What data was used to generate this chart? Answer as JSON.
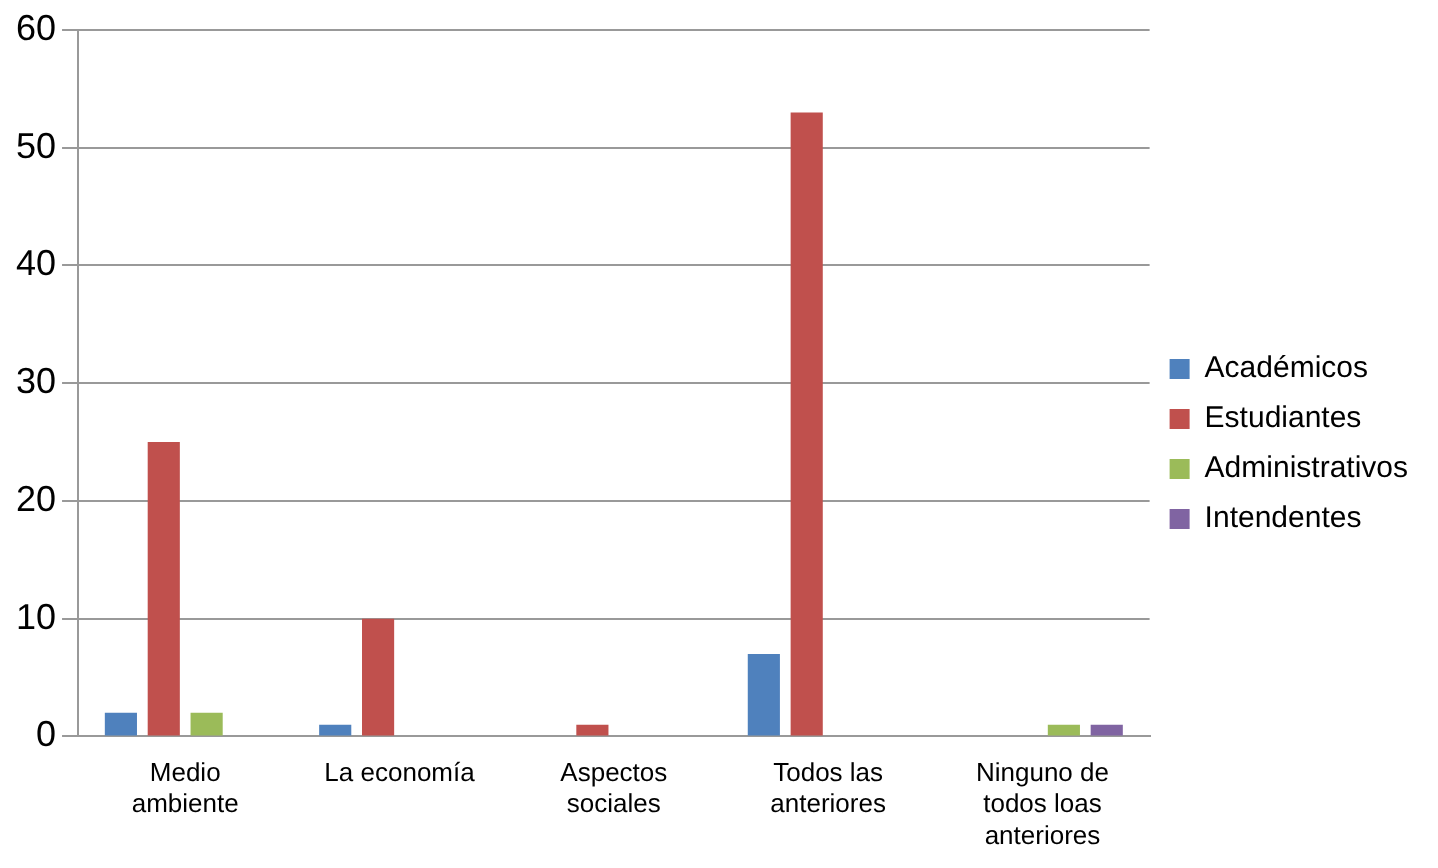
{
  "chart_data": {
    "type": "bar",
    "categories": [
      "Medio ambiente",
      "La economía",
      "Aspectos sociales",
      "Todos las anteriores",
      "Ninguno de todos loas anteriores"
    ],
    "series": [
      {
        "name": "Académicos",
        "color": "#4f81bd",
        "values": [
          2,
          1,
          0,
          7,
          0
        ]
      },
      {
        "name": "Estudiantes",
        "color": "#c0504d",
        "values": [
          25,
          10,
          1,
          53,
          0
        ]
      },
      {
        "name": "Administrativos",
        "color": "#9bbb59",
        "values": [
          2,
          0,
          0,
          0,
          1
        ]
      },
      {
        "name": "Intendentes",
        "color": "#8064a2",
        "values": [
          0,
          0,
          0,
          0,
          1
        ]
      }
    ],
    "ylim": [
      0,
      60
    ],
    "yticks": [
      0,
      10,
      20,
      30,
      40,
      50,
      60
    ],
    "grid": "y",
    "legend": "right"
  }
}
